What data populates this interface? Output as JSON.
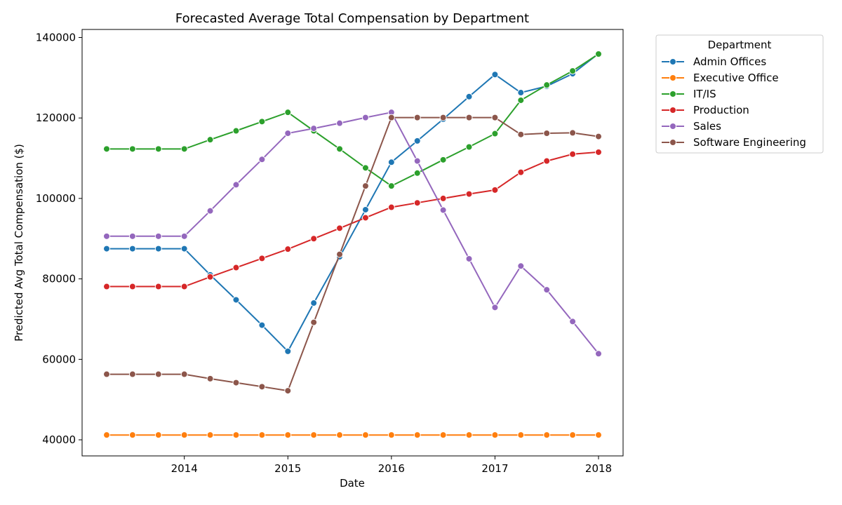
{
  "chart_data": {
    "type": "line",
    "title": "Forecasted Average Total Compensation by Department",
    "xlabel": "Date",
    "ylabel": "Predicted Avg Total Compensation ($)",
    "x": [
      "2013-04",
      "2013-07",
      "2013-10",
      "2014-01",
      "2014-04",
      "2014-07",
      "2014-10",
      "2015-01",
      "2015-04",
      "2015-07",
      "2015-10",
      "2016-01",
      "2016-04",
      "2016-07",
      "2016-10",
      "2017-01",
      "2017-04",
      "2017-07",
      "2017-10",
      "2018-01"
    ],
    "x_ticks": [
      "2014",
      "2015",
      "2016",
      "2017",
      "2018"
    ],
    "y_ticks": [
      "40000",
      "60000",
      "80000",
      "100000",
      "120000",
      "140000"
    ],
    "ylim": [
      36000,
      142000
    ],
    "legend_title": "Department",
    "legend_position": "outside-top-right",
    "series": [
      {
        "name": "Admin Offices",
        "color": "#1f77b4",
        "values": [
          87500,
          87500,
          87500,
          87500,
          81000,
          74800,
          68500,
          62000,
          74000,
          85500,
          97200,
          109000,
          114300,
          119700,
          125300,
          130800,
          126300,
          127900,
          131000,
          136000
        ]
      },
      {
        "name": "Executive Office",
        "color": "#ff7f0e",
        "values": [
          41200,
          41200,
          41200,
          41200,
          41200,
          41200,
          41200,
          41200,
          41200,
          41200,
          41200,
          41200,
          41200,
          41200,
          41200,
          41200,
          41200,
          41200,
          41200,
          41200
        ]
      },
      {
        "name": "IT/IS",
        "color": "#2ca02c",
        "values": [
          112300,
          112300,
          112300,
          112300,
          114600,
          116800,
          119100,
          121400,
          116800,
          112300,
          107600,
          103100,
          106300,
          109600,
          112800,
          116100,
          124400,
          128200,
          131700,
          135900
        ]
      },
      {
        "name": "Production",
        "color": "#d62728",
        "values": [
          78100,
          78100,
          78100,
          78100,
          80500,
          82800,
          85100,
          87400,
          90000,
          92600,
          95200,
          97800,
          98900,
          100000,
          101100,
          102100,
          106500,
          109300,
          111000,
          111500
        ]
      },
      {
        "name": "Sales",
        "color": "#9467bd",
        "values": [
          90600,
          90600,
          90600,
          90600,
          96900,
          103400,
          109700,
          116200,
          117400,
          118700,
          120100,
          121400,
          109300,
          97100,
          85000,
          72900,
          83200,
          77300,
          69400,
          61400
        ]
      },
      {
        "name": "Software Engineering",
        "color": "#8c564b",
        "values": [
          56300,
          56300,
          56300,
          56300,
          55200,
          54200,
          53200,
          52200,
          69200,
          86100,
          103100,
          120100,
          120100,
          120100,
          120100,
          120100,
          115900,
          116200,
          116300,
          115400
        ]
      }
    ]
  }
}
